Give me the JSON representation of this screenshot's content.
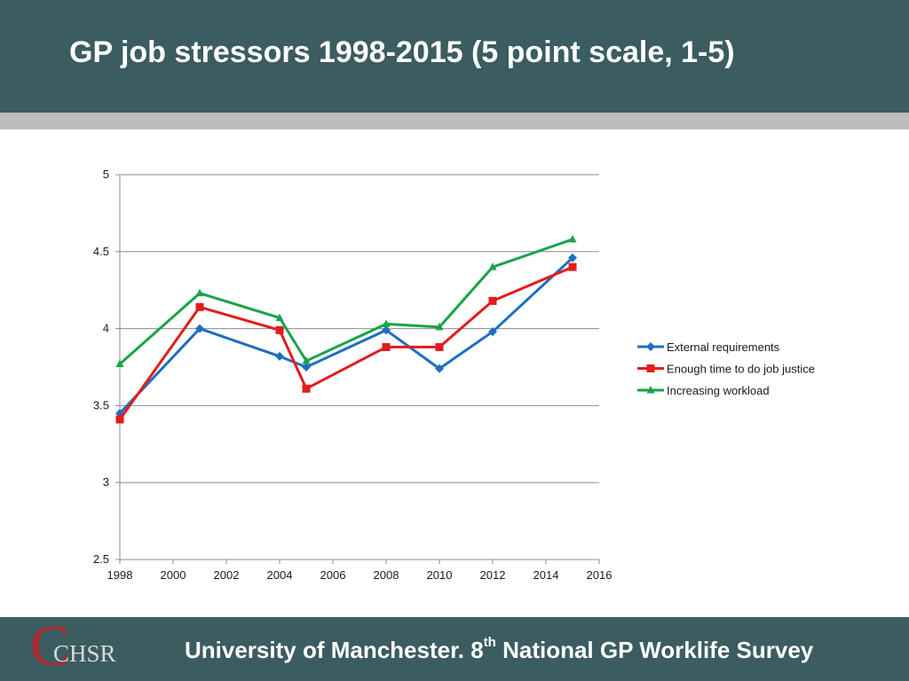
{
  "header": {
    "title": "GP job stressors 1998-2015 (5 point scale, 1-5)"
  },
  "footer": {
    "logo_mark": "C",
    "logo_text": "CHSR",
    "text_pre": "University of Manchester. 8",
    "text_sup": "th",
    "text_post": " National GP Worklife Survey"
  },
  "colors": {
    "header_bg": "#3b5c60",
    "rule": "#bdbdbd",
    "logo_red": "#b0272d"
  },
  "chart_data": {
    "type": "line",
    "title": "",
    "xlabel": "",
    "ylabel": "",
    "xlim": [
      1998,
      2016
    ],
    "ylim": [
      2.5,
      5
    ],
    "xticks": [
      1998,
      2000,
      2002,
      2004,
      2006,
      2008,
      2010,
      2012,
      2014,
      2016
    ],
    "yticks": [
      2.5,
      3,
      3.5,
      4,
      4.5,
      5
    ],
    "grid": "horizontal",
    "legend_position": "right",
    "x": [
      1998,
      2001,
      2004,
      2005,
      2008,
      2010,
      2012,
      2015
    ],
    "series": [
      {
        "name": "External requirements",
        "color": "#1f6fbf",
        "marker": "diamond",
        "values": [
          3.45,
          4.0,
          3.82,
          3.75,
          3.99,
          3.74,
          3.98,
          4.46
        ]
      },
      {
        "name": "Enough time to do job justice",
        "color": "#e31c1c",
        "marker": "square",
        "values": [
          3.41,
          4.14,
          3.99,
          3.61,
          3.88,
          3.88,
          4.18,
          4.4
        ]
      },
      {
        "name": "Increasing workload",
        "color": "#19a34a",
        "marker": "triangle",
        "values": [
          3.77,
          4.23,
          4.07,
          3.79,
          4.03,
          4.01,
          4.4,
          4.58
        ]
      }
    ]
  }
}
